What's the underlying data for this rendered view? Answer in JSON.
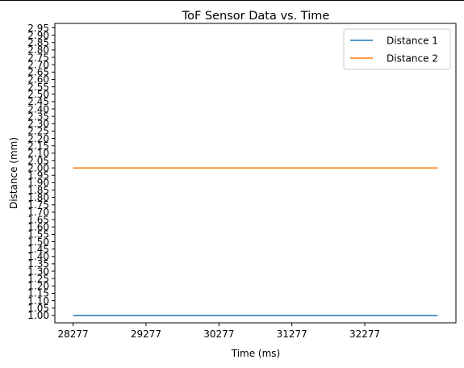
{
  "chart_data": {
    "type": "line",
    "title": "ToF Sensor Data vs. Time",
    "xlabel": "Time (ms)",
    "ylabel": "Distance (mm)",
    "x": [
      28277,
      33277
    ],
    "xticks": [
      28277,
      29277,
      30277,
      31277,
      32277
    ],
    "xlim": [
      28027,
      33527
    ],
    "yticks": [
      1.0,
      1.05,
      1.1,
      1.15,
      1.2,
      1.25,
      1.3,
      1.35,
      1.4,
      1.45,
      1.5,
      1.55,
      1.6,
      1.65,
      1.7,
      1.75,
      1.8,
      1.85,
      1.9,
      1.95,
      2.0,
      2.05,
      2.1,
      2.15,
      2.2,
      2.25,
      2.3,
      2.35,
      2.4,
      2.45,
      2.5,
      2.55,
      2.6,
      2.65,
      2.7,
      2.75,
      2.8,
      2.85,
      2.9,
      2.95
    ],
    "ylim": [
      0.95,
      2.98
    ],
    "grid": false,
    "legend_position": "top-right",
    "series": [
      {
        "name": "Distance 1",
        "values": [
          1,
          1
        ],
        "color": "#1f77b4"
      },
      {
        "name": "Distance 2",
        "values": [
          2,
          2
        ],
        "color": "#ff7f0e"
      }
    ]
  }
}
